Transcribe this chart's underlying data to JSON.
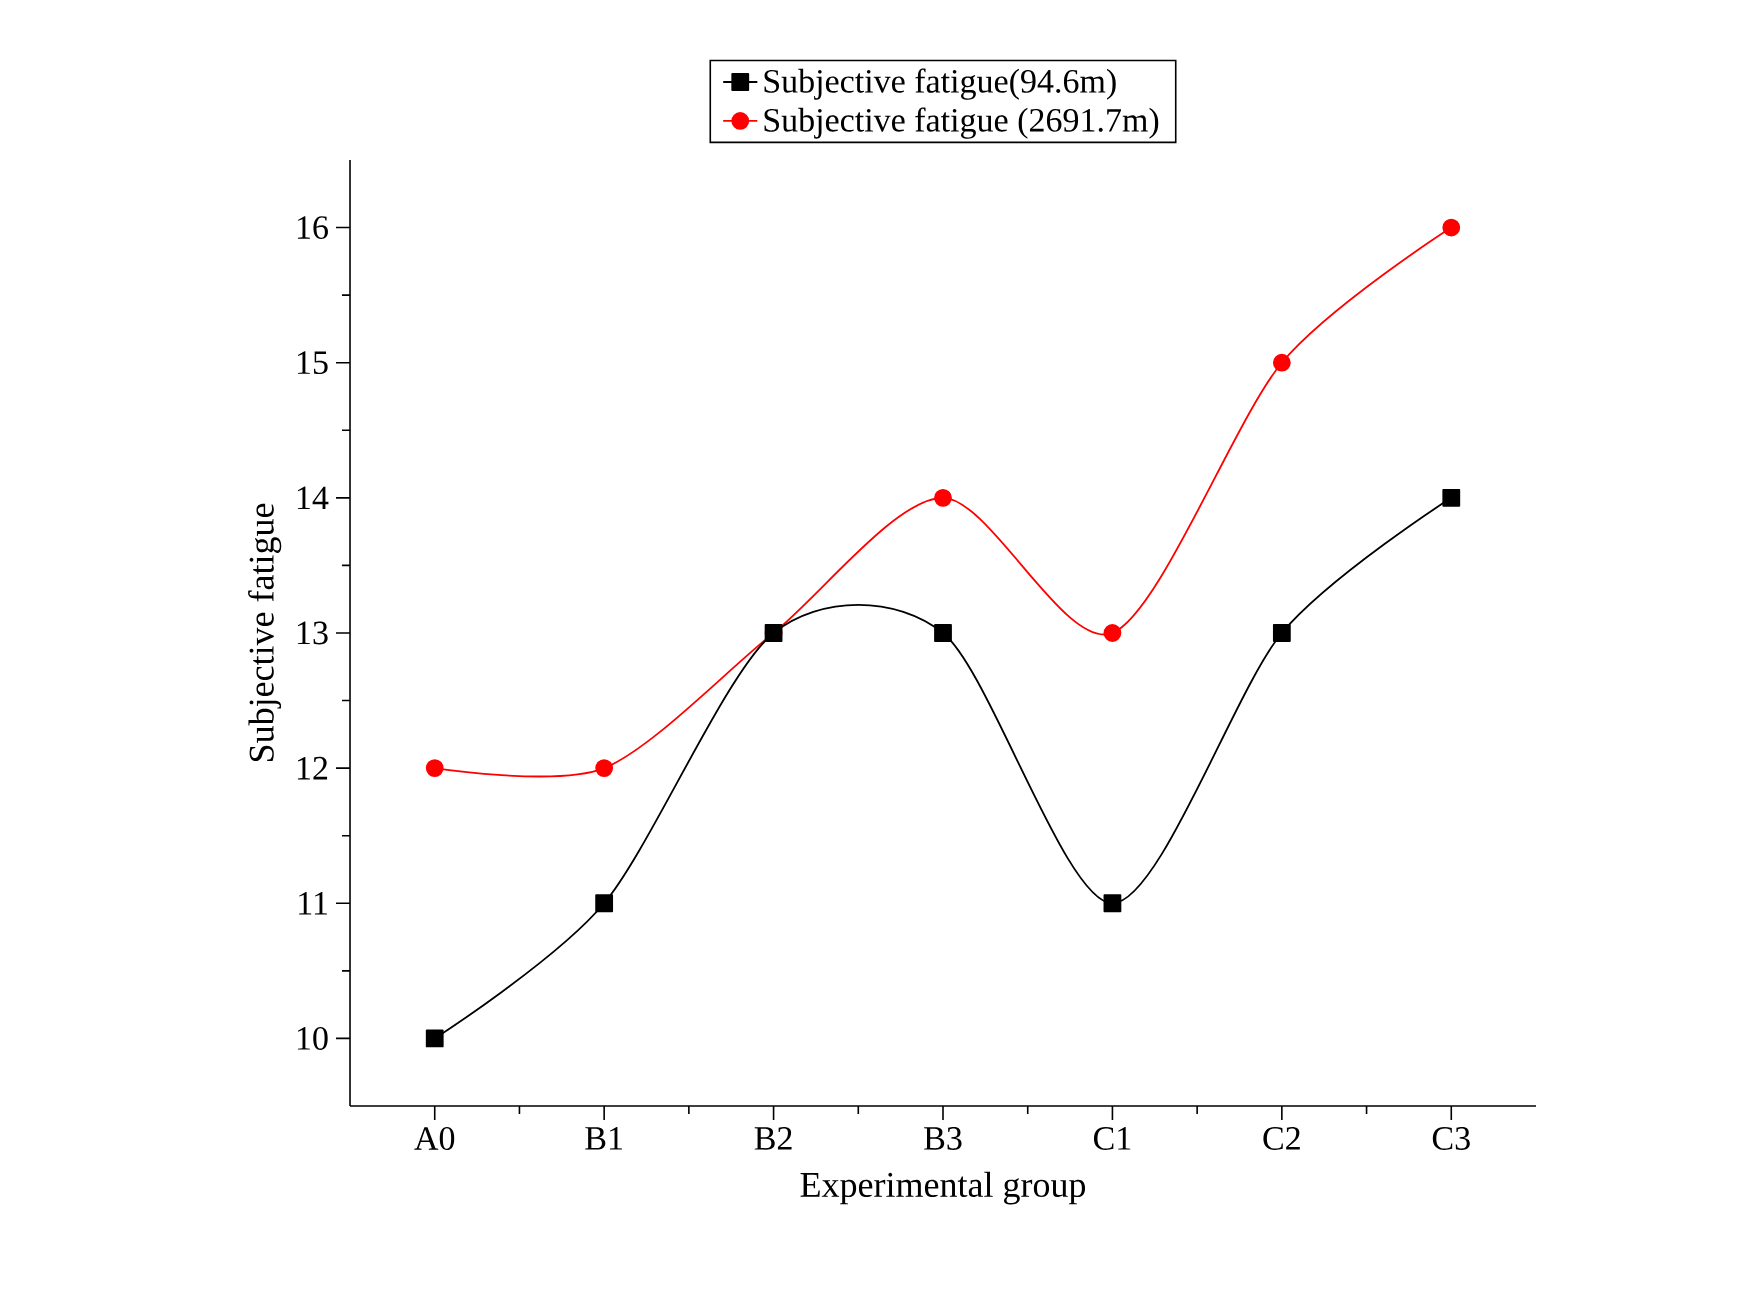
{
  "chart_data": {
    "type": "line",
    "xlabel": "Experimental group",
    "ylabel": "Subjective fatigue",
    "categories": [
      "A0",
      "B1",
      "B2",
      "B3",
      "C1",
      "C2",
      "C3"
    ],
    "series": [
      {
        "name": "Subjective fatigue(94.6m)",
        "color": "#000000",
        "marker": "square",
        "values": [
          10,
          11,
          13,
          13,
          11,
          13,
          14
        ]
      },
      {
        "name": "Subjective fatigue (2691.7m)",
        "color": "#ff0000",
        "marker": "circle",
        "values": [
          12,
          12,
          13,
          14,
          13,
          15,
          16
        ]
      }
    ],
    "ylim": [
      9.5,
      16.5
    ],
    "yticks": [
      10,
      11,
      12,
      13,
      14,
      15,
      16
    ],
    "legend": "top",
    "line_style": "solid"
  }
}
